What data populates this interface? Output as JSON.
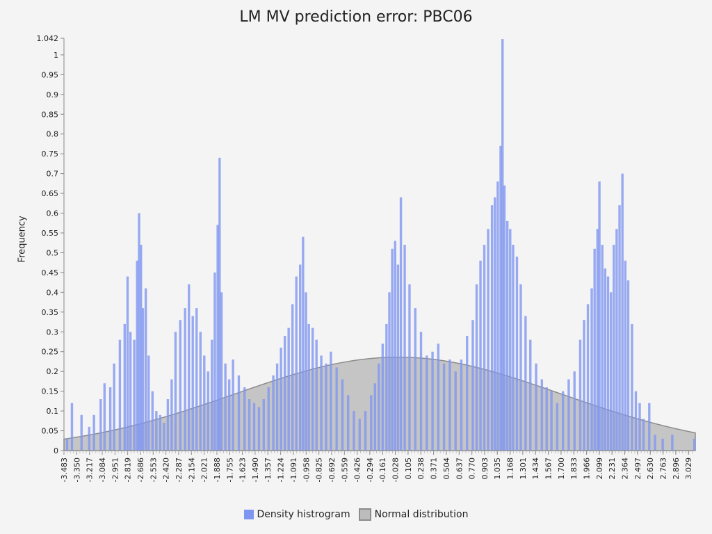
{
  "chart_data": {
    "type": "bar",
    "title": "LM MV prediction error: PBC06",
    "ylabel": "Frequency",
    "xlabel": "",
    "ylim": [
      0,
      1.042
    ],
    "xlim": [
      -3.483,
      3.1
    ],
    "yticks": [
      0,
      0.05,
      0.1,
      0.15,
      0.2,
      0.25,
      0.3,
      0.35,
      0.4,
      0.45,
      0.5,
      0.55,
      0.6,
      0.65,
      0.7,
      0.75,
      0.8,
      0.85,
      0.9,
      0.95,
      1,
      1.042
    ],
    "xtick_labels": [
      "-3.483",
      "-3.350",
      "-3.217",
      "-3.084",
      "-2.951",
      "-2.819",
      "-2.686",
      "-2.553",
      "-2.420",
      "-2.287",
      "-2.154",
      "-2.021",
      "-1.888",
      "-1.755",
      "-1.623",
      "-1.490",
      "-1.357",
      "-1.224",
      "-1.091",
      "-0.958",
      "-0.825",
      "-0.692",
      "-0.559",
      "-0.426",
      "-0.294",
      "-0.161",
      "-0.028",
      "0.105",
      "0.238",
      "0.371",
      "0.504",
      "0.637",
      "0.770",
      "0.903",
      "1.035",
      "1.168",
      "1.301",
      "1.434",
      "1.567",
      "1.700",
      "1.833",
      "1.966",
      "2.099",
      "2.231",
      "2.364",
      "2.497",
      "2.630",
      "2.763",
      "2.896",
      "3.029"
    ],
    "legend": {
      "position": "bottom",
      "entries": [
        "Density histrogram",
        "Normal distribution"
      ]
    },
    "grid": false,
    "series": [
      {
        "name": "Density histrogram",
        "kind": "bar",
        "color": "#7f96f0",
        "x": [
          -3.45,
          -3.4,
          -3.3,
          -3.22,
          -3.17,
          -3.1,
          -3.06,
          -3.0,
          -2.96,
          -2.9,
          -2.85,
          -2.82,
          -2.79,
          -2.75,
          -2.72,
          -2.7,
          -2.68,
          -2.66,
          -2.63,
          -2.6,
          -2.56,
          -2.52,
          -2.48,
          -2.44,
          -2.4,
          -2.36,
          -2.32,
          -2.27,
          -2.22,
          -2.18,
          -2.14,
          -2.1,
          -2.06,
          -2.02,
          -1.98,
          -1.94,
          -1.91,
          -1.88,
          -1.86,
          -1.84,
          -1.8,
          -1.76,
          -1.72,
          -1.66,
          -1.6,
          -1.55,
          -1.5,
          -1.45,
          -1.4,
          -1.35,
          -1.3,
          -1.26,
          -1.22,
          -1.18,
          -1.14,
          -1.1,
          -1.06,
          -1.02,
          -0.99,
          -0.96,
          -0.93,
          -0.89,
          -0.85,
          -0.8,
          -0.75,
          -0.7,
          -0.64,
          -0.58,
          -0.52,
          -0.46,
          -0.4,
          -0.34,
          -0.28,
          -0.24,
          -0.2,
          -0.16,
          -0.12,
          -0.09,
          -0.06,
          -0.03,
          0.0,
          0.03,
          0.07,
          0.12,
          0.18,
          0.24,
          0.3,
          0.36,
          0.42,
          0.48,
          0.54,
          0.6,
          0.66,
          0.72,
          0.78,
          0.82,
          0.86,
          0.9,
          0.94,
          0.98,
          1.01,
          1.04,
          1.07,
          1.09,
          1.11,
          1.14,
          1.17,
          1.2,
          1.24,
          1.28,
          1.33,
          1.38,
          1.44,
          1.5,
          1.55,
          1.6,
          1.66,
          1.72,
          1.78,
          1.84,
          1.9,
          1.94,
          1.98,
          2.02,
          2.05,
          2.08,
          2.1,
          2.13,
          2.16,
          2.19,
          2.22,
          2.25,
          2.28,
          2.31,
          2.34,
          2.37,
          2.4,
          2.44,
          2.48,
          2.52,
          2.56,
          2.62,
          2.68,
          2.76,
          2.86,
          3.09
        ],
        "values": [
          0.03,
          0.12,
          0.09,
          0.06,
          0.09,
          0.13,
          0.17,
          0.16,
          0.22,
          0.28,
          0.32,
          0.44,
          0.3,
          0.28,
          0.48,
          0.6,
          0.52,
          0.36,
          0.41,
          0.24,
          0.15,
          0.1,
          0.09,
          0.07,
          0.13,
          0.18,
          0.3,
          0.33,
          0.36,
          0.42,
          0.34,
          0.36,
          0.3,
          0.24,
          0.2,
          0.28,
          0.45,
          0.57,
          0.74,
          0.4,
          0.22,
          0.18,
          0.23,
          0.19,
          0.16,
          0.13,
          0.12,
          0.11,
          0.13,
          0.16,
          0.19,
          0.22,
          0.26,
          0.29,
          0.31,
          0.37,
          0.44,
          0.47,
          0.54,
          0.4,
          0.32,
          0.31,
          0.28,
          0.24,
          0.22,
          0.25,
          0.21,
          0.18,
          0.14,
          0.1,
          0.08,
          0.1,
          0.14,
          0.17,
          0.22,
          0.27,
          0.32,
          0.4,
          0.51,
          0.53,
          0.47,
          0.64,
          0.52,
          0.42,
          0.36,
          0.3,
          0.24,
          0.25,
          0.27,
          0.22,
          0.23,
          0.2,
          0.23,
          0.29,
          0.33,
          0.42,
          0.48,
          0.52,
          0.56,
          0.62,
          0.64,
          0.68,
          0.77,
          1.04,
          0.67,
          0.58,
          0.56,
          0.52,
          0.49,
          0.42,
          0.34,
          0.28,
          0.22,
          0.18,
          0.16,
          0.15,
          0.12,
          0.15,
          0.18,
          0.2,
          0.28,
          0.33,
          0.37,
          0.41,
          0.51,
          0.56,
          0.68,
          0.52,
          0.46,
          0.44,
          0.4,
          0.52,
          0.56,
          0.62,
          0.7,
          0.48,
          0.43,
          0.32,
          0.15,
          0.12,
          0.08,
          0.12,
          0.04,
          0.03,
          0.04,
          0.03
        ]
      },
      {
        "name": "Normal distribution",
        "kind": "area",
        "fill": "#bcbcbc",
        "stroke": "#8c8c8c",
        "mean": 0.0,
        "std": 1.7
      }
    ]
  }
}
